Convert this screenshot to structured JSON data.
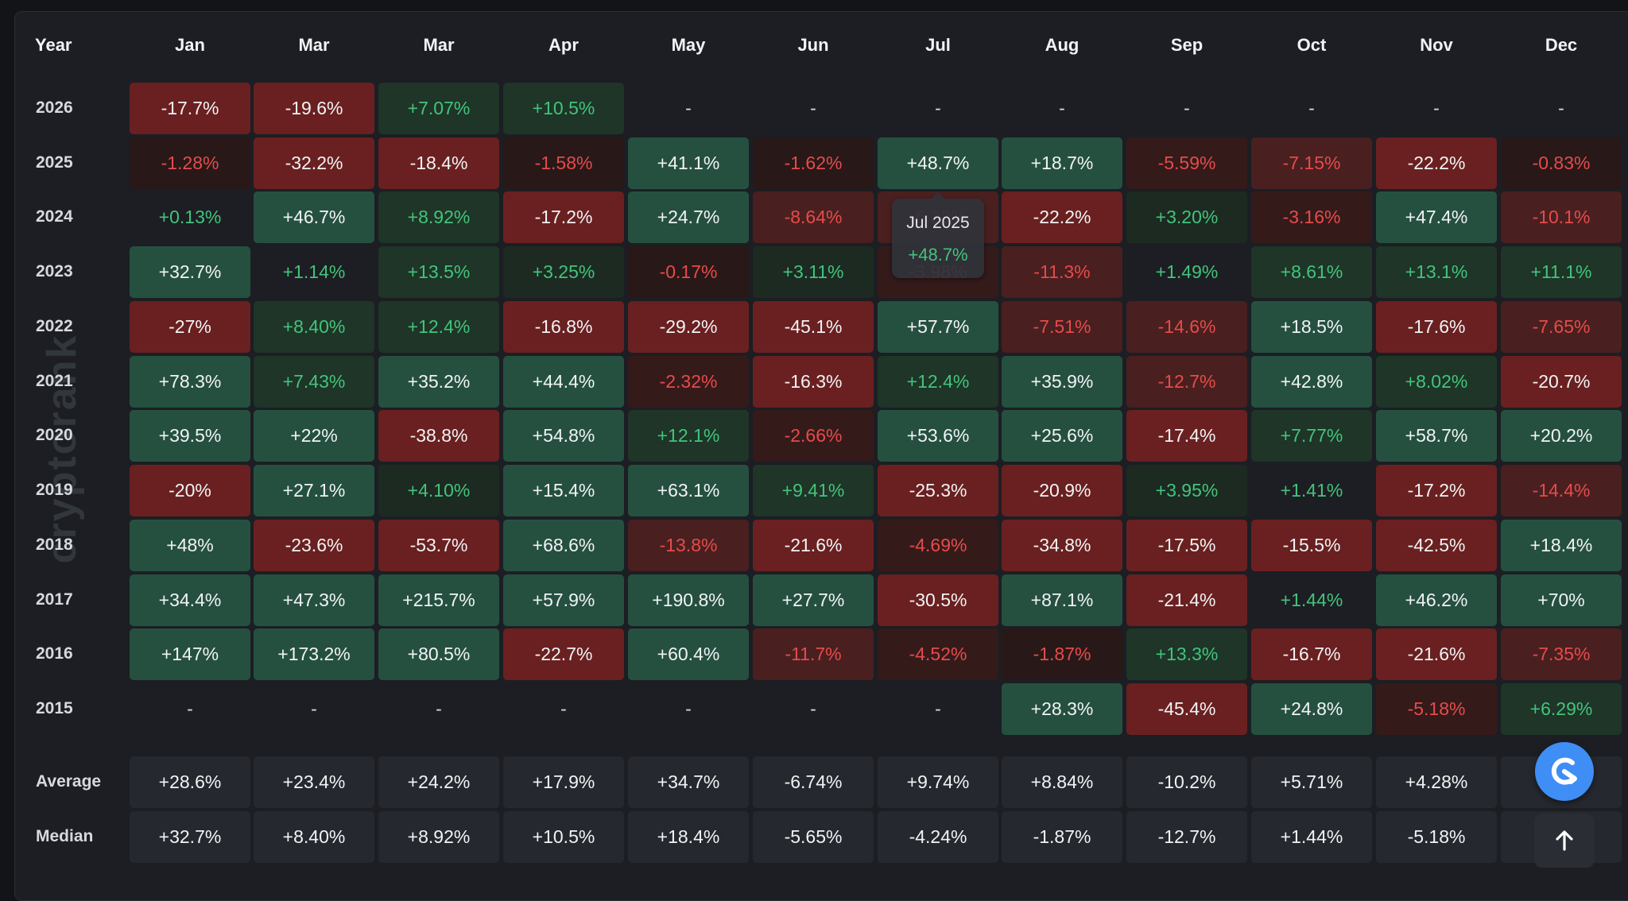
{
  "watermark": "cryptorank",
  "header": {
    "year_label": "Year",
    "months": [
      "Jan",
      "Mar",
      "Mar",
      "Apr",
      "May",
      "Jun",
      "Jul",
      "Aug",
      "Sep",
      "Oct",
      "Nov",
      "Dec"
    ]
  },
  "rows": [
    {
      "year": "2026",
      "values": [
        "-17.7%",
        "-19.6%",
        "+7.07%",
        "+10.5%",
        "-",
        "-",
        "-",
        "-",
        "-",
        "-",
        "-",
        "-"
      ]
    },
    {
      "year": "2025",
      "values": [
        "-1.28%",
        "-32.2%",
        "-18.4%",
        "-1.58%",
        "+41.1%",
        "-1.62%",
        "+48.7%",
        "+18.7%",
        "-5.59%",
        "-7.15%",
        "-22.2%",
        "-0.83%"
      ]
    },
    {
      "year": "2024",
      "values": [
        "+0.13%",
        "+46.7%",
        "+8.92%",
        "-17.2%",
        "+24.7%",
        "-8.64%",
        "-6.33%",
        "-22.2%",
        "+3.20%",
        "-3.16%",
        "+47.4%",
        "-10.1%"
      ]
    },
    {
      "year": "2023",
      "values": [
        "+32.7%",
        "+1.14%",
        "+13.5%",
        "+3.25%",
        "-0.17%",
        "+3.11%",
        "-3.98%",
        "-11.3%",
        "+1.49%",
        "+8.61%",
        "+13.1%",
        "+11.1%"
      ]
    },
    {
      "year": "2022",
      "values": [
        "-27%",
        "+8.40%",
        "+12.4%",
        "-16.8%",
        "-29.2%",
        "-45.1%",
        "+57.7%",
        "-7.51%",
        "-14.6%",
        "+18.5%",
        "-17.6%",
        "-7.65%"
      ]
    },
    {
      "year": "2021",
      "values": [
        "+78.3%",
        "+7.43%",
        "+35.2%",
        "+44.4%",
        "-2.32%",
        "-16.3%",
        "+12.4%",
        "+35.9%",
        "-12.7%",
        "+42.8%",
        "+8.02%",
        "-20.7%"
      ]
    },
    {
      "year": "2020",
      "values": [
        "+39.5%",
        "+22%",
        "-38.8%",
        "+54.8%",
        "+12.1%",
        "-2.66%",
        "+53.6%",
        "+25.6%",
        "-17.4%",
        "+7.77%",
        "+58.7%",
        "+20.2%"
      ]
    },
    {
      "year": "2019",
      "values": [
        "-20%",
        "+27.1%",
        "+4.10%",
        "+15.4%",
        "+63.1%",
        "+9.41%",
        "-25.3%",
        "-20.9%",
        "+3.95%",
        "+1.41%",
        "-17.2%",
        "-14.4%"
      ]
    },
    {
      "year": "2018",
      "values": [
        "+48%",
        "-23.6%",
        "-53.7%",
        "+68.6%",
        "-13.8%",
        "-21.6%",
        "-4.69%",
        "-34.8%",
        "-17.5%",
        "-15.5%",
        "-42.5%",
        "+18.4%"
      ]
    },
    {
      "year": "2017",
      "values": [
        "+34.4%",
        "+47.3%",
        "+215.7%",
        "+57.9%",
        "+190.8%",
        "+27.7%",
        "-30.5%",
        "+87.1%",
        "-21.4%",
        "+1.44%",
        "+46.2%",
        "+70%"
      ]
    },
    {
      "year": "2016",
      "values": [
        "+147%",
        "+173.2%",
        "+80.5%",
        "-22.7%",
        "+60.4%",
        "-11.7%",
        "-4.52%",
        "-1.87%",
        "+13.3%",
        "-16.7%",
        "-21.6%",
        "-7.35%"
      ]
    },
    {
      "year": "2015",
      "values": [
        "-",
        "-",
        "-",
        "-",
        "-",
        "-",
        "-",
        "+28.3%",
        "-45.4%",
        "+24.8%",
        "-5.18%",
        "+6.29%"
      ]
    }
  ],
  "stats": [
    {
      "label": "Average",
      "values": [
        "+28.6%",
        "+23.4%",
        "+24.2%",
        "+17.9%",
        "+34.7%",
        "-6.74%",
        "+9.74%",
        "+8.84%",
        "-10.2%",
        "+5.71%",
        "+4.28%",
        "+"
      ]
    },
    {
      "label": "Median",
      "values": [
        "+32.7%",
        "+8.40%",
        "+8.92%",
        "+10.5%",
        "+18.4%",
        "-5.65%",
        "-4.24%",
        "-1.87%",
        "-12.7%",
        "+1.44%",
        "-5.18%",
        "-"
      ]
    }
  ],
  "tooltip": {
    "title": "Jul 2025",
    "value": "+48.7%"
  },
  "fab": {
    "icon": "assistant-logo-icon"
  },
  "scroll_top": {
    "icon": "arrow-up-icon"
  }
}
